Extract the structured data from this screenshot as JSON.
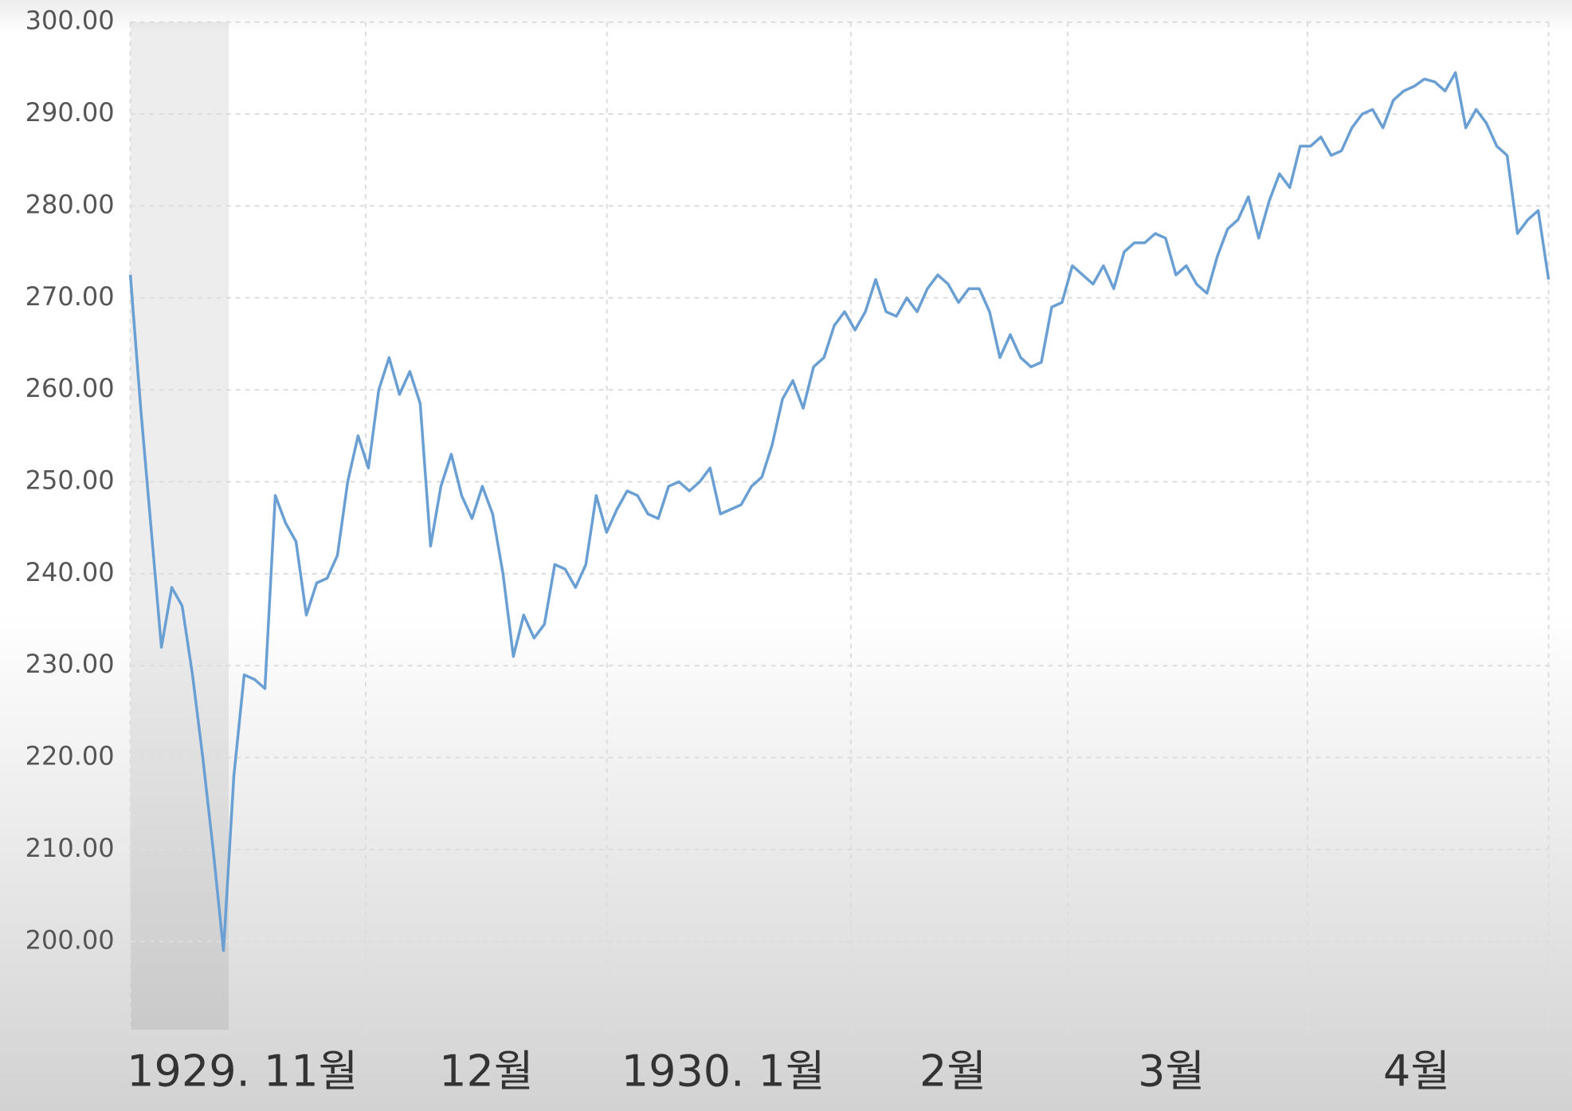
{
  "chart_data": {
    "type": "line",
    "x_labels": [
      "1929. 11월",
      "12월",
      "1930. 1월",
      "2월",
      "3월",
      "4월"
    ],
    "values": [
      272.5,
      258,
      245,
      232,
      238.5,
      236.5,
      229,
      220,
      210,
      199,
      218,
      229,
      228.5,
      227.5,
      248.5,
      245.5,
      243.5,
      235.5,
      239,
      239.5,
      242,
      250,
      255,
      251.5,
      260,
      263.5,
      259.5,
      262,
      258.5,
      243,
      249.5,
      253,
      248.5,
      246,
      249.5,
      246.5,
      240,
      231,
      235.5,
      233,
      234.5,
      241,
      240.5,
      238.5,
      241,
      248.5,
      244.5,
      247,
      249,
      248.5,
      246.5,
      246,
      249.5,
      250,
      249,
      250,
      251.5,
      246.5,
      247,
      247.5,
      249.5,
      250.5,
      254,
      259,
      261,
      258,
      262.5,
      263.5,
      267,
      268.5,
      266.5,
      268.5,
      272,
      268.5,
      268,
      270,
      268.5,
      271,
      272.5,
      271.5,
      269.5,
      271,
      271,
      268.5,
      263.5,
      266,
      263.5,
      262.5,
      263,
      269,
      269.5,
      273.5,
      272.5,
      271.5,
      273.5,
      271,
      275,
      276,
      276,
      277,
      276.5,
      272.5,
      273.5,
      271.5,
      270.5,
      274.5,
      277.5,
      278.5,
      281,
      276.5,
      280.5,
      283.5,
      282,
      286.5,
      286.5,
      287.5,
      285.5,
      286,
      288.5,
      290,
      290.5,
      288.5,
      291.5,
      292.5,
      293,
      293.8,
      293.5,
      292.5,
      294.5,
      288.5,
      290.5,
      289,
      286.5,
      285.5,
      277,
      278.5,
      279.5,
      272
    ],
    "color": "#6a9fd4",
    "ylim": [
      190.4,
      300
    ],
    "yticks": [
      {
        "value": 200,
        "label": "200.00"
      },
      {
        "value": 210,
        "label": "210.00"
      },
      {
        "value": 220,
        "label": "220.00"
      },
      {
        "value": 230,
        "label": "230.00"
      },
      {
        "value": 240,
        "label": "240.00"
      },
      {
        "value": 250,
        "label": "250.00"
      },
      {
        "value": 260,
        "label": "260.00"
      },
      {
        "value": 270,
        "label": "270.00"
      },
      {
        "value": 280,
        "label": "280.00"
      },
      {
        "value": 290,
        "label": "290.00"
      },
      {
        "value": 300,
        "label": "300.00"
      }
    ],
    "grid": true
  }
}
